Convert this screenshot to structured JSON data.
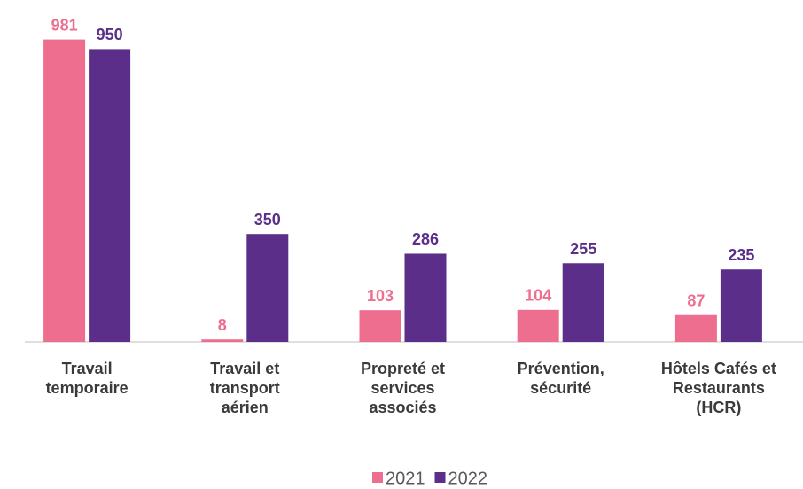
{
  "chart_data": {
    "type": "bar",
    "categories": [
      "Travail\ntemporaire",
      "Travail et\ntransport\naérien",
      "Propreté et\nservices\nassociés",
      "Prévention,\nsécurité",
      "Hôtels Cafés et\nRestaurants\n(HCR)"
    ],
    "series": [
      {
        "name": "2021",
        "color": "#ee6e8f",
        "values": [
          981,
          8,
          103,
          104,
          87
        ]
      },
      {
        "name": "2022",
        "color": "#5b2e8a",
        "values": [
          950,
          350,
          286,
          255,
          235
        ]
      }
    ],
    "ylim": [
      0,
      1000
    ]
  }
}
